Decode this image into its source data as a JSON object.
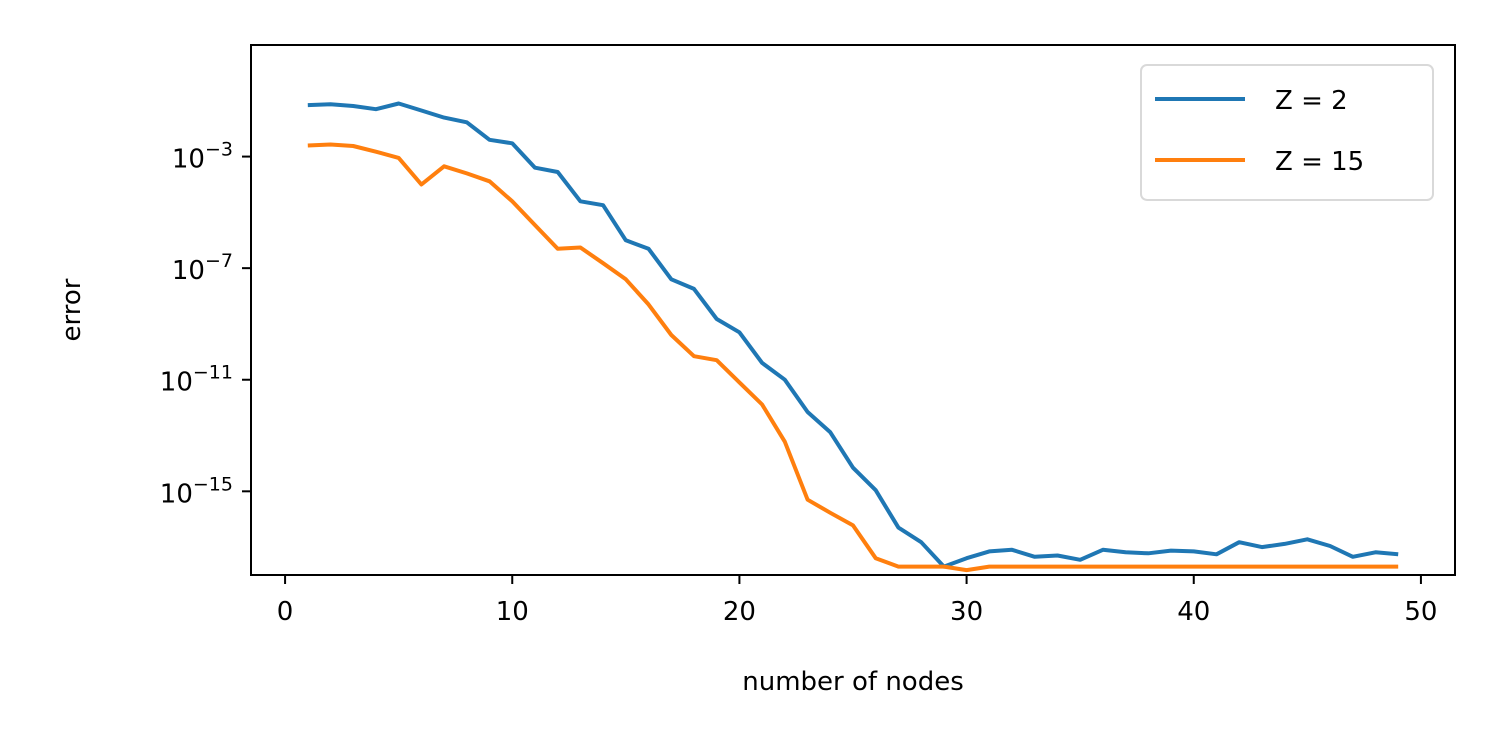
{
  "chart_data": {
    "type": "line",
    "title": "",
    "xlabel": "number of nodes",
    "ylabel": "error",
    "y_scale": "log",
    "xlim": [
      -1.5,
      51.5
    ],
    "ylim": [
      1e-18,
      10.0
    ],
    "x_ticks": [
      0,
      10,
      20,
      30,
      40,
      50
    ],
    "x_tick_labels": [
      "0",
      "10",
      "20",
      "30",
      "40",
      "50"
    ],
    "y_ticks": [
      1e-15,
      1e-11,
      1e-07,
      0.001
    ],
    "y_tick_labels": [
      {
        "base": "10",
        "exp": "−15"
      },
      {
        "base": "10",
        "exp": "−11"
      },
      {
        "base": "10",
        "exp": "−7"
      },
      {
        "base": "10",
        "exp": "−3"
      }
    ],
    "grid": false,
    "legend_position": "top-right",
    "x": [
      1,
      2,
      3,
      4,
      5,
      6,
      7,
      8,
      9,
      10,
      11,
      12,
      13,
      14,
      15,
      16,
      17,
      18,
      19,
      20,
      21,
      22,
      23,
      24,
      25,
      26,
      27,
      28,
      29,
      30,
      31,
      32,
      33,
      34,
      35,
      36,
      37,
      38,
      39,
      40,
      41,
      42,
      43,
      44,
      45,
      46,
      47,
      48,
      49
    ],
    "series": [
      {
        "name": "Z = 2",
        "color": "#1f77b4",
        "values": [
          0.07,
          0.075,
          0.065,
          0.05,
          0.08,
          0.045,
          0.025,
          0.017,
          0.004,
          0.003,
          0.0004,
          0.00028,
          2.5e-05,
          1.8e-05,
          1e-06,
          5e-07,
          4e-08,
          1.8e-08,
          1.5e-09,
          5e-10,
          4e-11,
          1e-11,
          7e-13,
          1.3e-13,
          7e-15,
          1.1e-15,
          5e-17,
          1.5e-17,
          2e-18,
          4e-18,
          7e-18,
          8e-18,
          4.5e-18,
          5e-18,
          3.5e-18,
          8e-18,
          6.5e-18,
          6e-18,
          7.5e-18,
          7e-18,
          5.5e-18,
          1.5e-17,
          1e-17,
          1.3e-17,
          1.9e-17,
          1.1e-17,
          4.5e-18,
          6.5e-18,
          5.5e-18
        ]
      },
      {
        "name": "Z = 15",
        "color": "#ff7f0e",
        "values": [
          0.0025,
          0.0027,
          0.0024,
          0.0015,
          0.0009,
          0.0001,
          0.00045,
          0.00025,
          0.00013,
          2.5e-05,
          3.5e-06,
          5e-07,
          5.5e-07,
          1.5e-07,
          4e-08,
          5e-09,
          4e-10,
          7e-11,
          5e-11,
          8e-12,
          1.3e-12,
          6e-14,
          5e-16,
          1.7e-16,
          6e-17,
          4e-18,
          2e-18,
          2e-18,
          2e-18,
          1.5e-18,
          2e-18,
          2e-18,
          2e-18,
          2e-18,
          2e-18,
          2e-18,
          2e-18,
          2e-18,
          2e-18,
          2e-18,
          2e-18,
          2e-18,
          2e-18,
          2e-18,
          2e-18,
          2e-18,
          2e-18,
          2e-18,
          2e-18
        ]
      }
    ]
  }
}
